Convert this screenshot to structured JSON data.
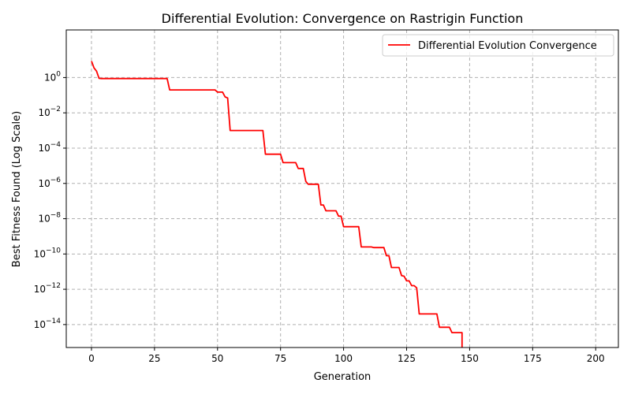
{
  "chart_data": {
    "type": "line",
    "title": "Differential Evolution: Convergence on Rastrigin Function",
    "xlabel": "Generation",
    "ylabel": "Best Fitness Found (Log Scale)",
    "x_ticks": [
      0,
      25,
      50,
      75,
      100,
      125,
      150,
      175,
      200
    ],
    "y_ticks": [
      {
        "value": 1,
        "base": "10",
        "exp": "0"
      },
      {
        "value": 0.01,
        "base": "10",
        "exp": "−2"
      },
      {
        "value": 0.0001,
        "base": "10",
        "exp": "−4"
      },
      {
        "value": 1e-06,
        "base": "10",
        "exp": "−6"
      },
      {
        "value": 1e-08,
        "base": "10",
        "exp": "−8"
      },
      {
        "value": 1e-10,
        "base": "10",
        "exp": "−10"
      },
      {
        "value": 1e-12,
        "base": "10",
        "exp": "−12"
      },
      {
        "value": 1e-14,
        "base": "10",
        "exp": "−14"
      }
    ],
    "xlim": [
      -10,
      209
    ],
    "ylim": [
      5e-16,
      500
    ],
    "y_scale": "log",
    "grid": true,
    "legend_position": "top-right",
    "series": [
      {
        "name": "Differential Evolution Convergence",
        "color": "#ff0000",
        "x": [
          0,
          1,
          2,
          3,
          4,
          30,
          31,
          49,
          50,
          52,
          53,
          54,
          55,
          68,
          69,
          75,
          76,
          81,
          82,
          84,
          85,
          86,
          90,
          91,
          92,
          93,
          97,
          98,
          99,
          100,
          106,
          107,
          111,
          112,
          116,
          117,
          118,
          119,
          122,
          123,
          124,
          125,
          126,
          127,
          128,
          129,
          130,
          137,
          138,
          142,
          143,
          147,
          147
        ],
        "y": [
          8.5,
          3.5,
          2.3,
          0.9,
          0.88,
          0.88,
          0.2,
          0.2,
          0.15,
          0.15,
          0.08,
          0.07,
          0.001,
          0.001,
          4.5e-05,
          4.5e-05,
          1.5e-05,
          1.5e-05,
          7e-06,
          7e-06,
          1.3e-06,
          9e-07,
          9e-07,
          6e-08,
          6e-08,
          2.8e-08,
          2.8e-08,
          1.4e-08,
          1.4e-08,
          3.5e-09,
          3.5e-09,
          2.5e-10,
          2.5e-10,
          2.3e-10,
          2.3e-10,
          8e-11,
          8e-11,
          1.7e-11,
          1.7e-11,
          6e-12,
          5.5e-12,
          3e-12,
          3e-12,
          1.6e-12,
          1.6e-12,
          1.2e-12,
          4e-14,
          4e-14,
          7e-15,
          7e-15,
          3.5e-15,
          3.5e-15,
          5e-16
        ]
      }
    ]
  }
}
